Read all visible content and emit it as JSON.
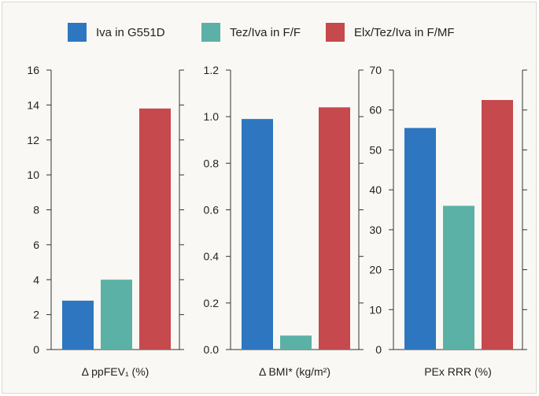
{
  "colors": {
    "frame_background": "#faf8f4",
    "series_colors": [
      "#2e77c0",
      "#5bb1a5",
      "#c5494d"
    ]
  },
  "chart_data": [
    {
      "type": "bar",
      "xlabel": "Δ ppFEV₁ (%)",
      "ylim": [
        0,
        16
      ],
      "yticks": [
        "0",
        "2",
        "4",
        "6",
        "8",
        "10",
        "12",
        "14",
        "16"
      ],
      "grid": false,
      "legend": "top-center",
      "series": [
        {
          "name": "Iva in G551D",
          "values": [
            2.8
          ]
        },
        {
          "name": "Tez/Iva in F/F",
          "values": [
            4.0
          ]
        },
        {
          "name": "Elx/Tez/Iva in F/MF",
          "values": [
            13.8
          ]
        }
      ]
    },
    {
      "type": "bar",
      "xlabel": "Δ BMI* (kg/m²)",
      "ylim": [
        0,
        1.2
      ],
      "yticks": [
        "0.0",
        "0.2",
        "0.4",
        "0.6",
        "0.8",
        "1.0",
        "1.2"
      ],
      "grid": false,
      "series": [
        {
          "name": "Iva in G551D",
          "values": [
            0.99
          ]
        },
        {
          "name": "Tez/Iva in F/F",
          "values": [
            0.06
          ]
        },
        {
          "name": "Elx/Tez/Iva in F/MF",
          "values": [
            1.04
          ]
        }
      ]
    },
    {
      "type": "bar",
      "xlabel": "PEx RRR (%)",
      "ylim": [
        0,
        70
      ],
      "yticks": [
        "0",
        "10",
        "20",
        "30",
        "40",
        "50",
        "60",
        "70"
      ],
      "grid": false,
      "series": [
        {
          "name": "Iva in G551D",
          "values": [
            55.5
          ]
        },
        {
          "name": "Tez/Iva in F/F",
          "values": [
            36
          ]
        },
        {
          "name": "Elx/Tez/Iva in F/MF",
          "values": [
            62.5
          ]
        }
      ]
    }
  ]
}
